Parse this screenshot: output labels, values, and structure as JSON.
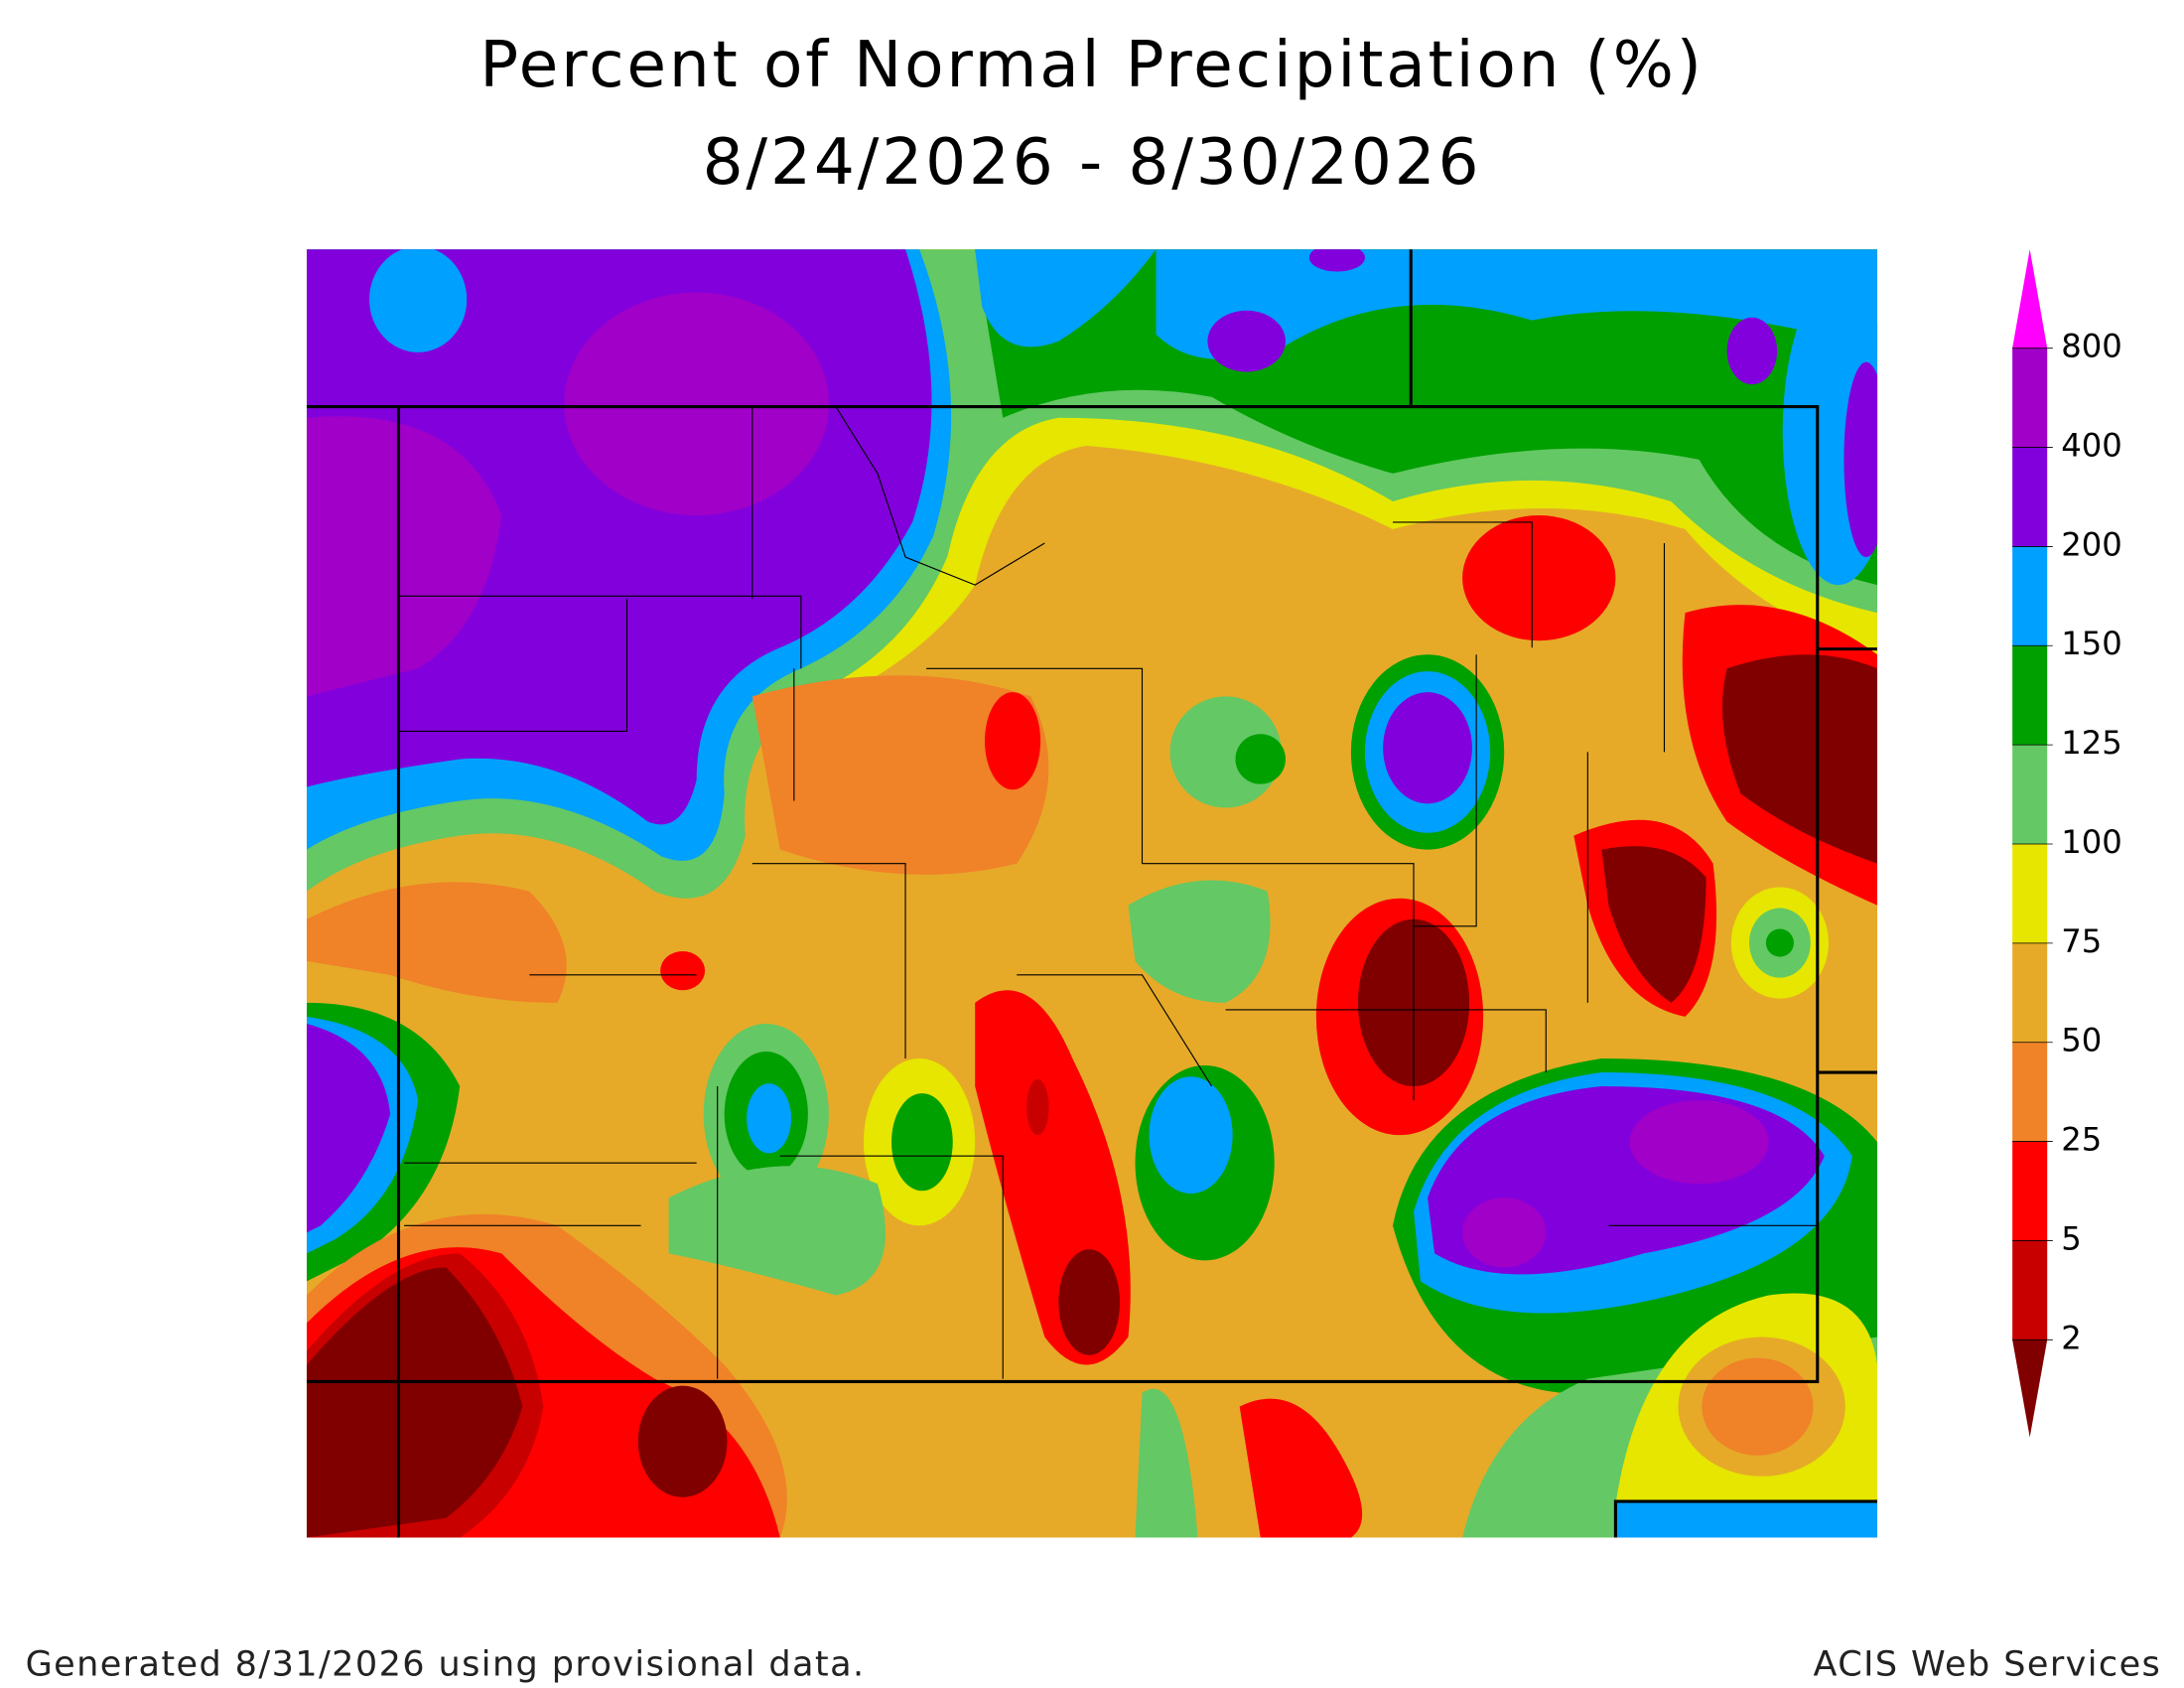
{
  "header": {
    "title": "Percent of Normal Precipitation (%)",
    "subtitle": "8/24/2026 - 8/30/2026"
  },
  "legend": {
    "thresholds": [
      2,
      5,
      25,
      50,
      75,
      100,
      125,
      150,
      200,
      400,
      800
    ],
    "colors": [
      "#800000",
      "#c80000",
      "#ff0000",
      "#f08228",
      "#e6aa28",
      "#e6e600",
      "#64c864",
      "#00a000",
      "#00a0ff",
      "#8200dc",
      "#a000c8",
      "#ff00ff"
    ]
  },
  "footer": {
    "left": "Generated 8/31/2026 using provisional data.",
    "right": "ACIS Web Services"
  }
}
